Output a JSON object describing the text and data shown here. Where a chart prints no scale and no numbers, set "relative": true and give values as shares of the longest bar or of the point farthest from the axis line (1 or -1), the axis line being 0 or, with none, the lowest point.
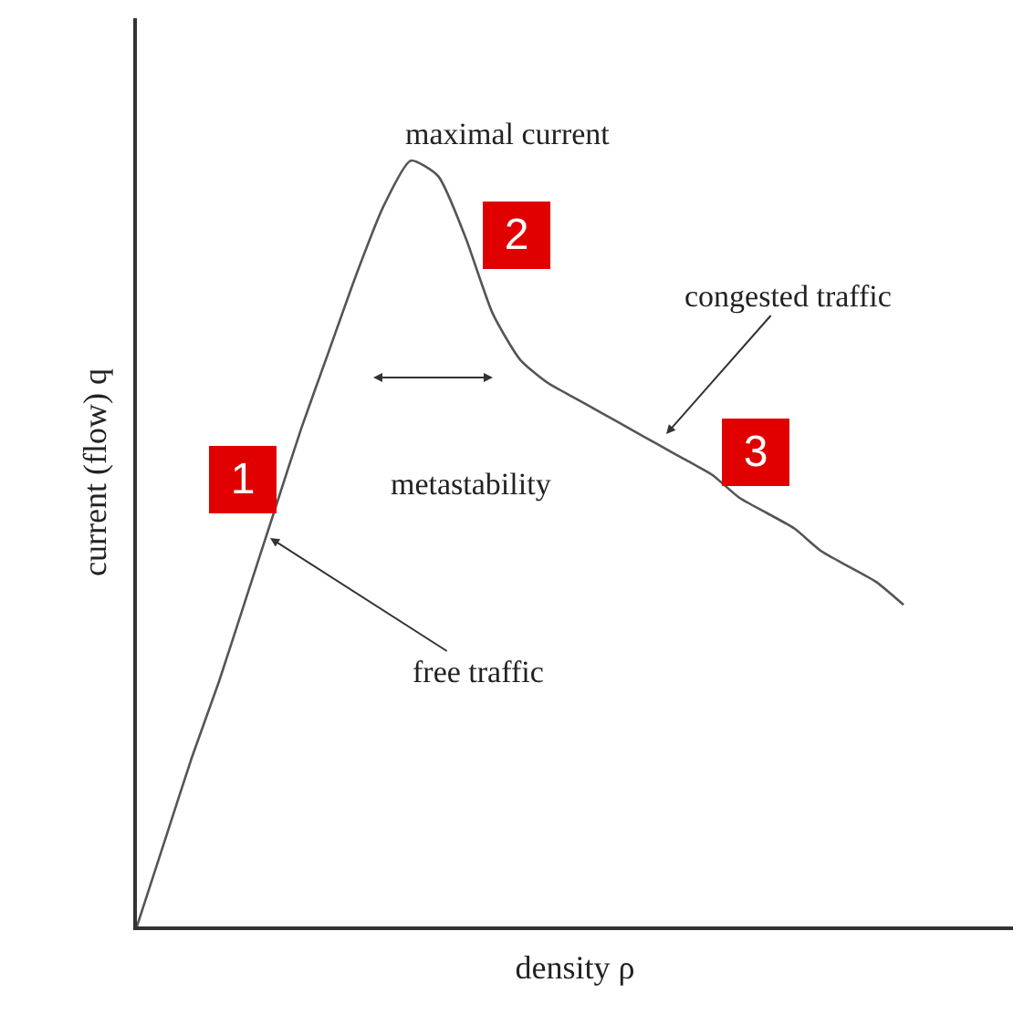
{
  "chart_data": {
    "type": "line",
    "relative": true,
    "xlabel": "density ρ",
    "ylabel": "current (flow) q",
    "categories": [
      null,
      null,
      null,
      null,
      null,
      null,
      null,
      null,
      null,
      null,
      null,
      null,
      null,
      null,
      null,
      null,
      null,
      null,
      null,
      null,
      null,
      null,
      null,
      null,
      null,
      null,
      null,
      null,
      null
    ],
    "series": [
      {
        "color": "#555555",
        "values": [
          0,
          0.11,
          0.22,
          0.32,
          0.43,
          0.54,
          0.65,
          0.75,
          0.85,
          0.94,
          1.0,
          0.98,
          0.9,
          0.8,
          0.74,
          0.71,
          0.69,
          0.67,
          0.65,
          0.63,
          0.61,
          0.59,
          0.56,
          0.54,
          0.52,
          0.49,
          0.47,
          0.45,
          0.42
        ]
      }
    ],
    "annotations": [
      "maximal current",
      "congested traffic",
      "metastability",
      "free traffic",
      "1",
      "2",
      "3"
    ],
    "marker": "none",
    "line_style": "solid"
  }
}
